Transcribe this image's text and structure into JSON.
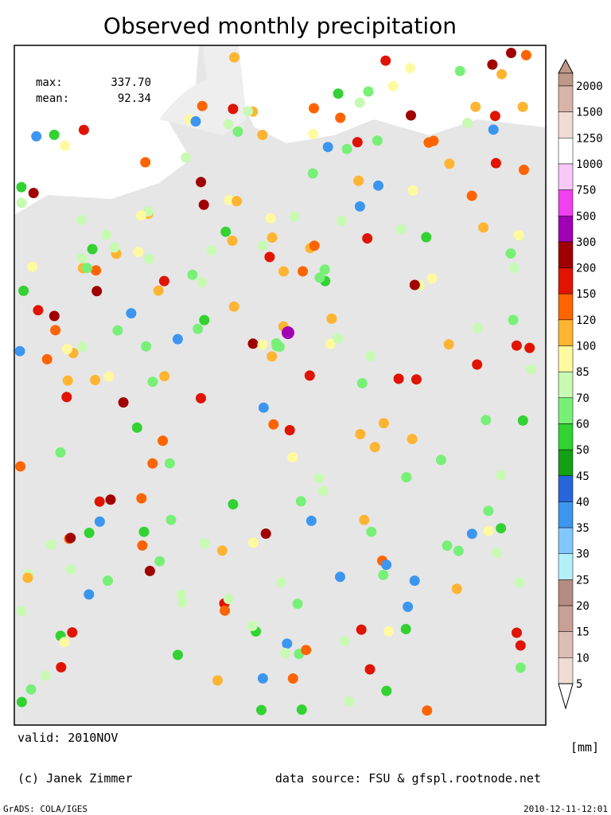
{
  "title": "Observed monthly precipitation",
  "stats": {
    "max_label": "max:",
    "max": "337.70",
    "mean_label": "mean:",
    "mean": "92.34"
  },
  "colorbar": {
    "labels": [
      "2000",
      "1500",
      "1250",
      "1000",
      "750",
      "500",
      "300",
      "200",
      "150",
      "120",
      "100",
      "85",
      "70",
      "60",
      "50",
      "45",
      "40",
      "35",
      "30",
      "25",
      "20",
      "15",
      "10",
      "5"
    ],
    "colors": [
      "#c09888",
      "#d8b4a8",
      "#f0dcd4",
      "#ffffff",
      "#f8c8f8",
      "#f040f0",
      "#a000b4",
      "#a00000",
      "#e01400",
      "#ff6400",
      "#ffb432",
      "#fffaa0",
      "#c8fab4",
      "#78f078",
      "#32d232",
      "#14a014",
      "#2864dc",
      "#3c96f0",
      "#82c8ff",
      "#b4f0fa",
      "#b48c82",
      "#c8a096",
      "#dcbeb4",
      "#f0dcd2",
      "#f8ece8"
    ],
    "unit": "[mm]"
  },
  "valid": "valid: 2010NOV",
  "credit": "(c) Janek Zimmer",
  "source": "data source: FSU & gfspl.rootnode.net",
  "footer_left": "GrADS: COLA/IGES",
  "footer_right": "2010-12-11-12:01"
}
